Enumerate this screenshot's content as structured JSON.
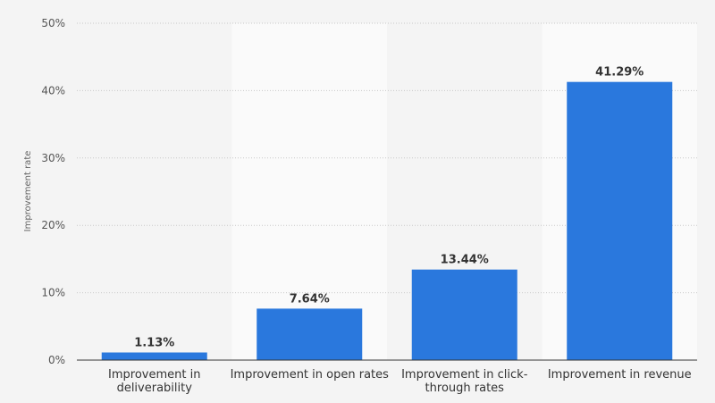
{
  "chart_data": {
    "type": "bar",
    "ylabel": "Improvement rate",
    "xlabel": "",
    "ylim": [
      0,
      50
    ],
    "yticks": [
      0,
      10,
      20,
      30,
      40,
      50
    ],
    "ytick_labels": [
      "0%",
      "10%",
      "20%",
      "30%",
      "40%",
      "50%"
    ],
    "categories": [
      [
        "Improvement in",
        "deliverability"
      ],
      [
        "Improvement in open rates"
      ],
      [
        "Improvement in click-",
        "through rates"
      ],
      [
        "Improvement in revenue"
      ]
    ],
    "values": [
      1.13,
      7.64,
      13.44,
      41.29
    ],
    "data_labels": [
      "1.13%",
      "7.64%",
      "13.44%",
      "41.29%"
    ],
    "grid": true,
    "bar_color": "#2a78dd",
    "band_color": "#fafafa",
    "background": "#f4f4f4"
  }
}
